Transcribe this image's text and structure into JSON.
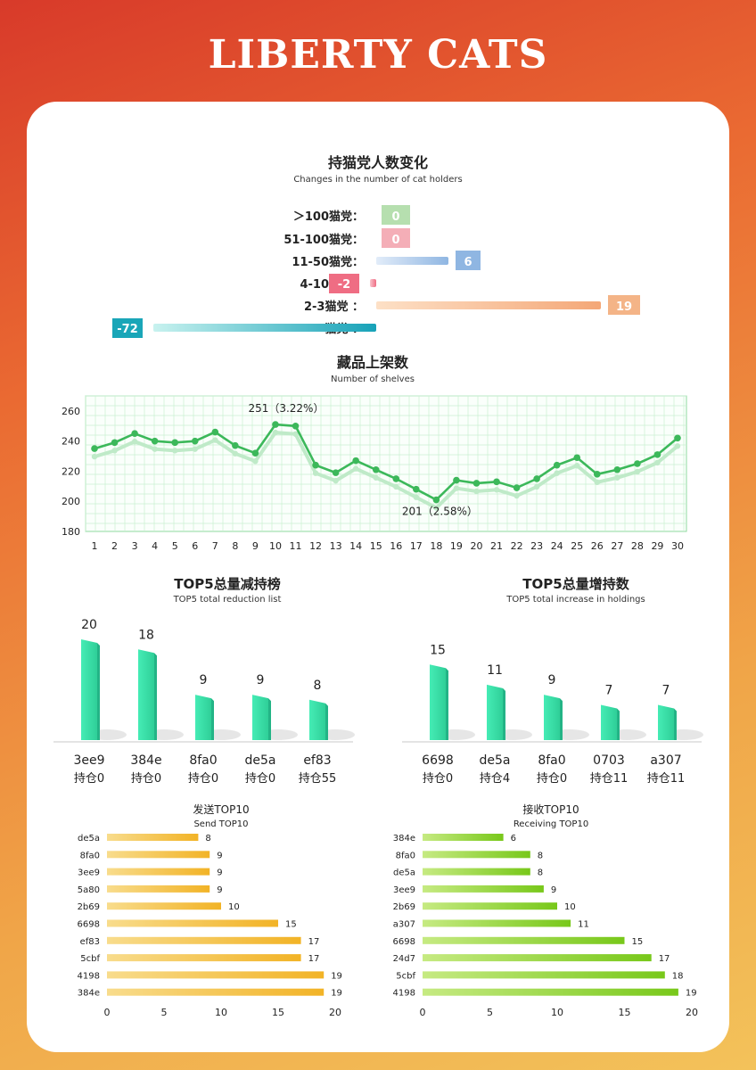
{
  "page": {
    "title": "LIBERTY CATS"
  },
  "chart_data": [
    {
      "id": "holders",
      "type": "bar",
      "orientation": "horizontal-diverging",
      "title": "持猫党人数变化",
      "subtitle": "Changes in the number of cat holders",
      "categories": [
        "＞100猫党：",
        "51-100猫党：",
        "11-50猫党：",
        "4-10猫党：",
        "2-3猫党  ：",
        "一猫党  ："
      ],
      "values": [
        0,
        0,
        6,
        -2,
        19,
        -72
      ],
      "colors": [
        "#a9d9a1",
        "#f2a0aa",
        "#8fb6e2",
        "#ef6d83",
        "#f4b487",
        "#1aa6b8"
      ]
    },
    {
      "id": "shelves",
      "type": "line",
      "title": "藏品上架数",
      "subtitle": "Number of shelves",
      "x": [
        1,
        2,
        3,
        4,
        5,
        6,
        7,
        8,
        9,
        10,
        11,
        12,
        13,
        14,
        15,
        16,
        17,
        18,
        19,
        20,
        21,
        22,
        23,
        24,
        25,
        26,
        27,
        28,
        29,
        30
      ],
      "values": [
        235,
        239,
        245,
        240,
        239,
        240,
        246,
        237,
        232,
        251,
        250,
        224,
        219,
        227,
        221,
        215,
        208,
        201,
        214,
        212,
        213,
        209,
        215,
        224,
        229,
        218,
        221,
        225,
        231,
        242
      ],
      "ylim": [
        180,
        270
      ],
      "yticks": [
        180,
        200,
        220,
        240,
        260
      ],
      "annotations": [
        "251（3.22%）",
        "201（2.58%）"
      ],
      "color": "#3cb85a"
    },
    {
      "id": "reduction",
      "type": "bar",
      "title": "TOP5总量减持榜",
      "subtitle": "TOP5 total reduction list",
      "categories": [
        "3ee9",
        "384e",
        "8fa0",
        "de5a",
        "ef83"
      ],
      "values": [
        20,
        18,
        9,
        9,
        8
      ],
      "sublabels": [
        "持仓0",
        "持仓0",
        "持仓0",
        "持仓0",
        "持仓55"
      ],
      "color": "#3de0a8"
    },
    {
      "id": "increase",
      "type": "bar",
      "title": "TOP5总量增持数",
      "subtitle": "TOP5 total increase in holdings",
      "categories": [
        "6698",
        "de5a",
        "8fa0",
        "0703",
        "a307"
      ],
      "values": [
        15,
        11,
        9,
        7,
        7
      ],
      "sublabels": [
        "持仓0",
        "持仓4",
        "持仓0",
        "持仓11",
        "持仓11"
      ],
      "color": "#3de0a8"
    },
    {
      "id": "send",
      "type": "bar",
      "orientation": "horizontal",
      "title": "发送TOP10",
      "subtitle": "Send TOP10",
      "categories": [
        "de5a",
        "8fa0",
        "3ee9",
        "5a80",
        "2b69",
        "6698",
        "ef83",
        "5cbf",
        "4198",
        "384e"
      ],
      "values": [
        8,
        9,
        9,
        9,
        10,
        15,
        17,
        17,
        19,
        19
      ],
      "xticks": [
        0,
        5,
        10,
        15,
        20
      ],
      "xlim": [
        0,
        20
      ],
      "color": "#f4bd3c"
    },
    {
      "id": "receive",
      "type": "bar",
      "orientation": "horizontal",
      "title": "接收TOP10",
      "subtitle": "Receiving TOP10",
      "categories": [
        "384e",
        "8fa0",
        "de5a",
        "3ee9",
        "2b69",
        "a307",
        "6698",
        "24d7",
        "5cbf",
        "4198"
      ],
      "values": [
        6,
        8,
        8,
        9,
        10,
        11,
        15,
        17,
        18,
        19
      ],
      "xticks": [
        0,
        5,
        10,
        15,
        20
      ],
      "xlim": [
        0,
        20
      ],
      "color": "#8fd12e"
    }
  ]
}
